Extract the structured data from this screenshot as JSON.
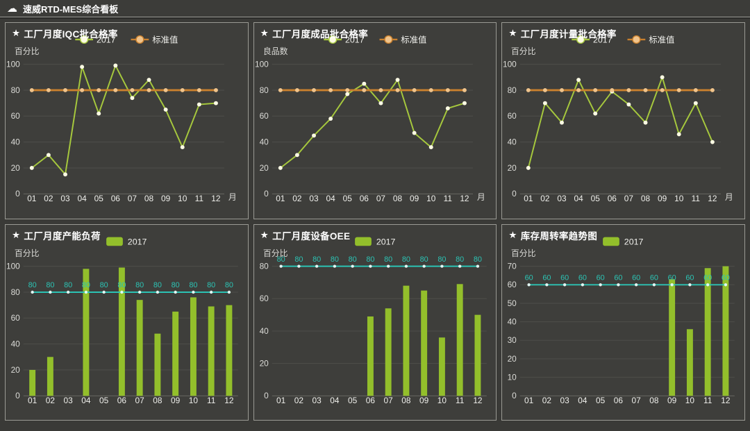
{
  "header": {
    "title": "速威RTD-MES综合看板",
    "icon_glyph": "☁"
  },
  "style": {
    "colors": {
      "page_bg": "#3a3a37",
      "panel_bg": "#3e3e3b",
      "panel_border": "#9a9a94",
      "grid_line": "#4e4e4b",
      "axis_line": "#6e6e68",
      "tick_text": "#dcdcd8",
      "x_label_text": "#f0f0ec",
      "title_text": "#ffffff",
      "series_green": "#a6c83d",
      "series_green_marker": "#fcfbe4",
      "standard_orange": "#c9802e",
      "standard_orange_marker": "#f0c48c",
      "bar_green": "#93bf2b",
      "target_teal": "#2cc3b4",
      "target_teal_marker": "#e2f8f4"
    }
  },
  "chart_data": [
    {
      "type": "line",
      "title": "工厂月度IQC批合格率",
      "title_icon": "★",
      "ylabel": "百分比",
      "xlabel": "月",
      "ylim": [
        0,
        100
      ],
      "ytick_step": 20,
      "grid": true,
      "legend_position": "top",
      "categories": [
        "01",
        "02",
        "03",
        "04",
        "05",
        "06",
        "07",
        "08",
        "09",
        "10",
        "11",
        "12"
      ],
      "series": [
        {
          "name": "2017",
          "type": "line",
          "color": "#a6c83d",
          "marker_fill": "#fcfbe4",
          "line_width": 2,
          "values": [
            20,
            30,
            15,
            98,
            62,
            99,
            74,
            88,
            65,
            36,
            69,
            70
          ]
        },
        {
          "name": "标准值",
          "type": "line",
          "color": "#c9802e",
          "marker_fill": "#f0c48c",
          "line_width": 3,
          "values": [
            80,
            80,
            80,
            80,
            80,
            80,
            80,
            80,
            80,
            80,
            80,
            80
          ]
        }
      ]
    },
    {
      "type": "line",
      "title": "工厂月度成品批合格率",
      "title_icon": "★",
      "ylabel": "良品数",
      "xlabel": "月",
      "ylim": [
        0,
        100
      ],
      "ytick_step": 20,
      "grid": true,
      "legend_position": "top",
      "categories": [
        "01",
        "02",
        "03",
        "04",
        "05",
        "06",
        "07",
        "08",
        "09",
        "10",
        "11",
        "12"
      ],
      "series": [
        {
          "name": "2017",
          "type": "line",
          "color": "#a6c83d",
          "marker_fill": "#fcfbe4",
          "line_width": 2,
          "values": [
            20,
            30,
            45,
            58,
            77,
            85,
            70,
            88,
            47,
            36,
            66,
            70
          ]
        },
        {
          "name": "标准值",
          "type": "line",
          "color": "#c9802e",
          "marker_fill": "#f0c48c",
          "line_width": 3,
          "values": [
            80,
            80,
            80,
            80,
            80,
            80,
            80,
            80,
            80,
            80,
            80,
            80
          ]
        }
      ]
    },
    {
      "type": "line",
      "title": "工厂月度计量批合格率",
      "title_icon": "★",
      "ylabel": "百分比",
      "xlabel": "月",
      "ylim": [
        0,
        100
      ],
      "ytick_step": 20,
      "grid": true,
      "legend_position": "top",
      "categories": [
        "01",
        "02",
        "03",
        "04",
        "05",
        "06",
        "07",
        "08",
        "09",
        "10",
        "11",
        "12"
      ],
      "series": [
        {
          "name": "2017",
          "type": "line",
          "color": "#a6c83d",
          "marker_fill": "#fcfbe4",
          "line_width": 2,
          "values": [
            20,
            70,
            55,
            88,
            62,
            79,
            69,
            55,
            90,
            46,
            70,
            40
          ]
        },
        {
          "name": "标准值",
          "type": "line",
          "color": "#c9802e",
          "marker_fill": "#f0c48c",
          "line_width": 3,
          "values": [
            80,
            80,
            80,
            80,
            80,
            80,
            80,
            80,
            80,
            80,
            80,
            80
          ]
        }
      ]
    },
    {
      "type": "bar",
      "title": "工厂月度产能负荷",
      "title_icon": "★",
      "ylabel": "百分比",
      "xlabel": "",
      "ylim": [
        0,
        100
      ],
      "ytick_step": 20,
      "grid": true,
      "legend_position": "top",
      "categories": [
        "01",
        "02",
        "03",
        "04",
        "05",
        "06",
        "07",
        "08",
        "09",
        "10",
        "11",
        "12"
      ],
      "series": [
        {
          "name": "2017",
          "type": "bar",
          "color": "#93bf2b",
          "values": [
            20,
            30,
            0,
            98,
            0,
            99,
            74,
            48,
            65,
            76,
            69,
            70
          ]
        },
        {
          "name": "",
          "in_legend": false,
          "type": "line",
          "color": "#2cc3b4",
          "marker_fill": "#e2f8f4",
          "line_width": 2,
          "marker_r": 2.2,
          "show_labels": true,
          "values": [
            80,
            80,
            80,
            80,
            80,
            80,
            80,
            80,
            80,
            80,
            80,
            80
          ]
        }
      ]
    },
    {
      "type": "bar",
      "title": "工厂月度设备OEE",
      "title_icon": "★",
      "ylabel": "百分比",
      "xlabel": "",
      "ylim": [
        0,
        80
      ],
      "ytick_step": 20,
      "grid": true,
      "legend_position": "top",
      "categories": [
        "01",
        "02",
        "03",
        "04",
        "05",
        "06",
        "07",
        "08",
        "09",
        "10",
        "11",
        "12"
      ],
      "series": [
        {
          "name": "2017",
          "type": "bar",
          "color": "#93bf2b",
          "values": [
            0,
            0,
            0,
            0,
            0,
            49,
            54,
            68,
            65,
            36,
            69,
            50
          ]
        },
        {
          "name": "",
          "in_legend": false,
          "type": "line",
          "color": "#2cc3b4",
          "marker_fill": "#e2f8f4",
          "line_width": 2,
          "marker_r": 2.2,
          "show_labels": true,
          "values": [
            80,
            80,
            80,
            80,
            80,
            80,
            80,
            80,
            80,
            80,
            80,
            80
          ]
        }
      ]
    },
    {
      "type": "bar",
      "title": "库存周转率趋势图",
      "title_icon": "★",
      "ylabel": "百分比",
      "xlabel": "",
      "ylim": [
        0,
        70
      ],
      "ytick_step": 10,
      "grid": true,
      "legend_position": "top",
      "categories": [
        "01",
        "02",
        "03",
        "04",
        "05",
        "06",
        "07",
        "08",
        "09",
        "10",
        "11",
        "12"
      ],
      "series": [
        {
          "name": "2017",
          "type": "bar",
          "color": "#93bf2b",
          "values": [
            0,
            0,
            0,
            0,
            0,
            0,
            0,
            0,
            63,
            36,
            69,
            70
          ]
        },
        {
          "name": "",
          "in_legend": false,
          "type": "line",
          "color": "#2cc3b4",
          "marker_fill": "#e2f8f4",
          "line_width": 2,
          "marker_r": 2.2,
          "show_labels": true,
          "values": [
            60,
            60,
            60,
            60,
            60,
            60,
            60,
            60,
            60,
            60,
            60,
            60
          ]
        }
      ]
    }
  ]
}
